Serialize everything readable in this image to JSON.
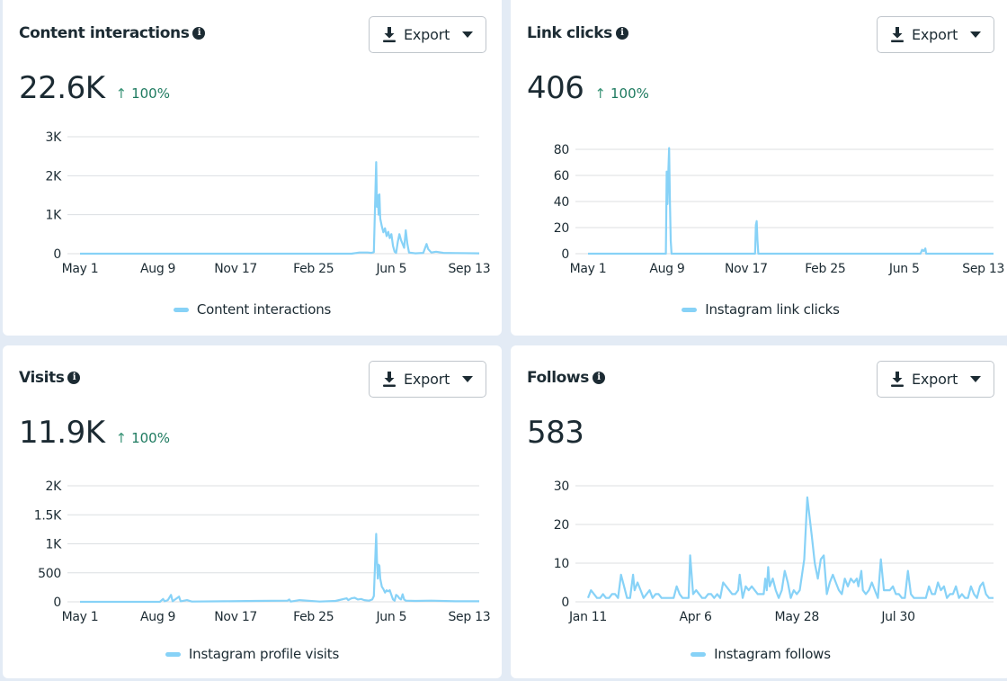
{
  "colors": {
    "series": "#87d2f7",
    "positive_delta": "#1d7a5f",
    "text": "#1c2b33",
    "page_background": "#e3ebf5"
  },
  "export_label": "Export",
  "cards": [
    {
      "title": "Content interactions",
      "info_icon": "info-icon",
      "value": "22.6K",
      "delta_arrow": "↑",
      "delta": "100%",
      "legend": "Content interactions"
    },
    {
      "title": "Link clicks",
      "info_icon": "info-icon",
      "value": "406",
      "delta_arrow": "↑",
      "delta": "100%",
      "legend": "Instagram link clicks"
    },
    {
      "title": "Visits",
      "info_icon": "info-icon",
      "value": "11.9K",
      "delta_arrow": "↑",
      "delta": "100%",
      "legend": "Instagram profile visits"
    },
    {
      "title": "Follows",
      "info_icon": "info-icon",
      "value": "583",
      "legend": "Instagram follows"
    }
  ],
  "chart_data": [
    {
      "type": "line",
      "title": "Content interactions",
      "series_name": "Content interactions",
      "x_tick_labels": [
        "May 1",
        "Aug 9",
        "Nov 17",
        "Feb 25",
        "Jun 5",
        "Sep 13"
      ],
      "y_tick_labels": [
        "0",
        "1K",
        "2K",
        "3K"
      ],
      "y_ticks": [
        0,
        1000,
        2000,
        3000
      ],
      "ylim": [
        0,
        3000
      ],
      "x_range_days": [
        0,
        500
      ],
      "grid": true,
      "legend_position": "bottom-center",
      "points": [
        [
          0,
          0
        ],
        [
          300,
          0
        ],
        [
          340,
          0
        ],
        [
          350,
          30
        ],
        [
          360,
          30
        ],
        [
          365,
          20
        ],
        [
          368,
          40
        ],
        [
          371,
          2350
        ],
        [
          372,
          1200
        ],
        [
          373,
          1500
        ],
        [
          374,
          1000
        ],
        [
          375,
          1520
        ],
        [
          376,
          900
        ],
        [
          378,
          700
        ],
        [
          380,
          550
        ],
        [
          382,
          650
        ],
        [
          384,
          450
        ],
        [
          386,
          560
        ],
        [
          388,
          400
        ],
        [
          390,
          500
        ],
        [
          392,
          200
        ],
        [
          394,
          50
        ],
        [
          396,
          20
        ],
        [
          398,
          300
        ],
        [
          400,
          500
        ],
        [
          402,
          350
        ],
        [
          404,
          250
        ],
        [
          406,
          150
        ],
        [
          408,
          600
        ],
        [
          410,
          250
        ],
        [
          412,
          30
        ],
        [
          420,
          10
        ],
        [
          430,
          20
        ],
        [
          434,
          250
        ],
        [
          436,
          120
        ],
        [
          440,
          30
        ],
        [
          446,
          50
        ],
        [
          455,
          20
        ],
        [
          470,
          15
        ],
        [
          500,
          10
        ]
      ]
    },
    {
      "type": "line",
      "title": "Link clicks",
      "series_name": "Instagram link clicks",
      "x_tick_labels": [
        "May 1",
        "Aug 9",
        "Nov 17",
        "Feb 25",
        "Jun 5",
        "Sep 13"
      ],
      "y_tick_labels": [
        "0",
        "20",
        "40",
        "60",
        "80"
      ],
      "y_ticks": [
        0,
        20,
        40,
        60,
        80
      ],
      "ylim": [
        0,
        80
      ],
      "x_range_days": [
        0,
        500
      ],
      "grid": true,
      "legend_position": "bottom-center",
      "points": [
        [
          0,
          0
        ],
        [
          95,
          0
        ],
        [
          96,
          0
        ],
        [
          97,
          63
        ],
        [
          98,
          38
        ],
        [
          99,
          62
        ],
        [
          100,
          81
        ],
        [
          101,
          40
        ],
        [
          102,
          10
        ],
        [
          103,
          0
        ],
        [
          205,
          0
        ],
        [
          206,
          0
        ],
        [
          207,
          22
        ],
        [
          208,
          25
        ],
        [
          209,
          10
        ],
        [
          210,
          0
        ],
        [
          410,
          0
        ],
        [
          412,
          3
        ],
        [
          414,
          2
        ],
        [
          416,
          4
        ],
        [
          417,
          0
        ],
        [
          500,
          0
        ]
      ]
    },
    {
      "type": "line",
      "title": "Visits",
      "series_name": "Instagram profile visits",
      "x_tick_labels": [
        "May 1",
        "Aug 9",
        "Nov 17",
        "Feb 25",
        "Jun 5",
        "Sep 13"
      ],
      "y_tick_labels": [
        "0",
        "500",
        "1K",
        "1.5K",
        "2K"
      ],
      "y_ticks": [
        0,
        500,
        1000,
        1500,
        2000
      ],
      "ylim": [
        0,
        2000
      ],
      "x_range_days": [
        0,
        500
      ],
      "grid": true,
      "legend_position": "bottom-center",
      "points": [
        [
          0,
          0
        ],
        [
          100,
          0
        ],
        [
          104,
          50
        ],
        [
          106,
          10
        ],
        [
          110,
          30
        ],
        [
          114,
          120
        ],
        [
          116,
          10
        ],
        [
          124,
          90
        ],
        [
          126,
          10
        ],
        [
          134,
          30
        ],
        [
          140,
          5
        ],
        [
          180,
          10
        ],
        [
          220,
          15
        ],
        [
          260,
          20
        ],
        [
          262,
          40
        ],
        [
          264,
          5
        ],
        [
          275,
          30
        ],
        [
          300,
          5
        ],
        [
          320,
          15
        ],
        [
          334,
          60
        ],
        [
          336,
          30
        ],
        [
          340,
          60
        ],
        [
          344,
          70
        ],
        [
          348,
          40
        ],
        [
          352,
          50
        ],
        [
          356,
          30
        ],
        [
          362,
          20
        ],
        [
          366,
          40
        ],
        [
          368,
          100
        ],
        [
          371,
          1170
        ],
        [
          372,
          700
        ],
        [
          373,
          400
        ],
        [
          374,
          640
        ],
        [
          375,
          620
        ],
        [
          376,
          400
        ],
        [
          378,
          260
        ],
        [
          380,
          220
        ],
        [
          382,
          160
        ],
        [
          384,
          200
        ],
        [
          386,
          180
        ],
        [
          388,
          200
        ],
        [
          390,
          120
        ],
        [
          392,
          40
        ],
        [
          394,
          20
        ],
        [
          396,
          120
        ],
        [
          398,
          100
        ],
        [
          400,
          60
        ],
        [
          402,
          40
        ],
        [
          404,
          130
        ],
        [
          406,
          40
        ],
        [
          408,
          20
        ],
        [
          420,
          15
        ],
        [
          440,
          20
        ],
        [
          470,
          10
        ],
        [
          500,
          10
        ]
      ]
    },
    {
      "type": "line",
      "title": "Follows",
      "series_name": "Instagram follows",
      "x_tick_labels": [
        "Jan 11",
        "Apr 6",
        "May 28",
        "Jul 30"
      ],
      "y_tick_labels": [
        "0",
        "10",
        "20",
        "30"
      ],
      "y_ticks": [
        0,
        10,
        20,
        30
      ],
      "ylim": [
        0,
        30
      ],
      "x_range_days": [
        0,
        270
      ],
      "grid": true,
      "legend_position": "bottom-center",
      "points": [
        [
          0,
          1
        ],
        [
          2,
          3
        ],
        [
          4,
          2
        ],
        [
          6,
          1
        ],
        [
          8,
          1
        ],
        [
          10,
          2
        ],
        [
          12,
          1
        ],
        [
          14,
          1
        ],
        [
          16,
          2
        ],
        [
          18,
          2
        ],
        [
          20,
          1
        ],
        [
          22,
          7
        ],
        [
          24,
          4
        ],
        [
          26,
          1
        ],
        [
          28,
          1
        ],
        [
          30,
          7
        ],
        [
          31,
          3
        ],
        [
          33,
          5
        ],
        [
          35,
          3
        ],
        [
          37,
          1
        ],
        [
          39,
          2
        ],
        [
          41,
          3
        ],
        [
          43,
          1
        ],
        [
          45,
          2
        ],
        [
          47,
          2
        ],
        [
          49,
          1
        ],
        [
          51,
          1
        ],
        [
          53,
          1
        ],
        [
          55,
          1
        ],
        [
          57,
          1
        ],
        [
          59,
          4
        ],
        [
          61,
          2
        ],
        [
          63,
          1
        ],
        [
          65,
          1
        ],
        [
          67,
          1
        ],
        [
          68,
          12
        ],
        [
          70,
          2
        ],
        [
          72,
          3
        ],
        [
          74,
          2
        ],
        [
          76,
          1
        ],
        [
          78,
          1
        ],
        [
          80,
          2
        ],
        [
          82,
          2
        ],
        [
          84,
          1
        ],
        [
          86,
          2
        ],
        [
          88,
          1
        ],
        [
          90,
          5
        ],
        [
          92,
          4
        ],
        [
          94,
          3
        ],
        [
          96,
          2
        ],
        [
          98,
          2
        ],
        [
          100,
          3
        ],
        [
          101,
          7
        ],
        [
          103,
          1
        ],
        [
          105,
          4
        ],
        [
          107,
          3
        ],
        [
          109,
          4
        ],
        [
          111,
          3
        ],
        [
          113,
          2
        ],
        [
          115,
          2
        ],
        [
          117,
          2
        ],
        [
          118,
          6
        ],
        [
          119,
          3
        ],
        [
          120,
          9
        ],
        [
          121,
          4
        ],
        [
          123,
          6
        ],
        [
          125,
          3
        ],
        [
          127,
          1
        ],
        [
          129,
          3
        ],
        [
          131,
          8
        ],
        [
          133,
          5
        ],
        [
          135,
          1
        ],
        [
          137,
          3
        ],
        [
          139,
          2
        ],
        [
          141,
          3
        ],
        [
          144,
          11
        ],
        [
          146,
          27
        ],
        [
          149,
          17
        ],
        [
          151,
          10
        ],
        [
          153,
          6
        ],
        [
          155,
          11
        ],
        [
          157,
          12
        ],
        [
          159,
          2
        ],
        [
          161,
          5
        ],
        [
          163,
          7
        ],
        [
          165,
          5
        ],
        [
          167,
          3
        ],
        [
          169,
          2
        ],
        [
          171,
          6
        ],
        [
          173,
          4
        ],
        [
          175,
          6
        ],
        [
          177,
          5
        ],
        [
          179,
          6
        ],
        [
          180,
          4
        ],
        [
          182,
          8
        ],
        [
          183,
          3
        ],
        [
          185,
          2
        ],
        [
          187,
          3
        ],
        [
          189,
          5
        ],
        [
          191,
          3
        ],
        [
          193,
          1
        ],
        [
          195,
          11
        ],
        [
          197,
          3
        ],
        [
          199,
          3
        ],
        [
          201,
          3
        ],
        [
          203,
          4
        ],
        [
          205,
          2
        ],
        [
          207,
          2
        ],
        [
          209,
          1
        ],
        [
          211,
          1
        ],
        [
          213,
          8
        ],
        [
          215,
          2
        ],
        [
          217,
          1
        ],
        [
          219,
          1
        ],
        [
          221,
          1
        ],
        [
          223,
          1
        ],
        [
          225,
          1
        ],
        [
          227,
          4
        ],
        [
          229,
          2
        ],
        [
          231,
          2
        ],
        [
          233,
          5
        ],
        [
          235,
          3
        ],
        [
          237,
          4
        ],
        [
          239,
          1
        ],
        [
          241,
          2
        ],
        [
          243,
          2
        ],
        [
          245,
          4
        ],
        [
          247,
          1
        ],
        [
          249,
          2
        ],
        [
          251,
          1
        ],
        [
          253,
          1
        ],
        [
          255,
          4
        ],
        [
          257,
          2
        ],
        [
          259,
          1
        ],
        [
          261,
          4
        ],
        [
          263,
          5
        ],
        [
          265,
          2
        ],
        [
          267,
          1
        ],
        [
          269,
          1
        ],
        [
          270,
          1
        ]
      ]
    }
  ]
}
